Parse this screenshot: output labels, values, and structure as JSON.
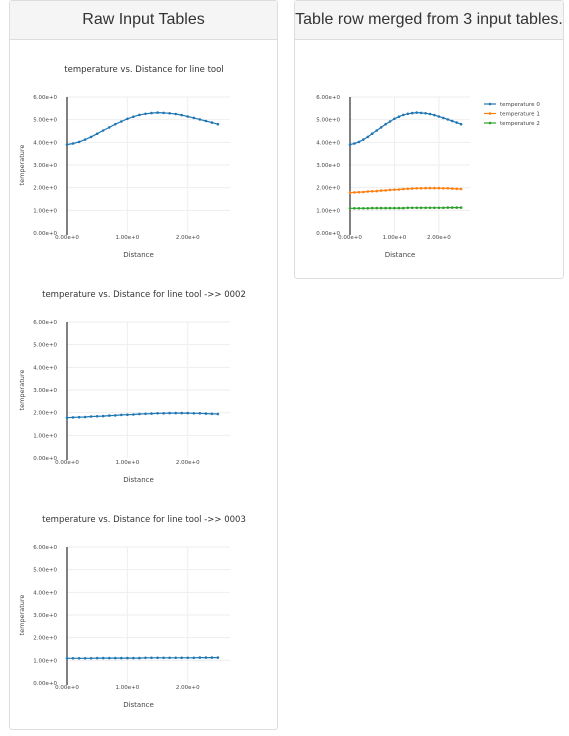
{
  "panels": {
    "left_title": "Raw Input Tables",
    "right_title": "Table row merged from 3 input tables."
  },
  "colors": {
    "series0": "#1f77b4",
    "series1": "#ff7f0e",
    "series2": "#2ca02c",
    "grid": "#eeeeee",
    "axis": "#000000",
    "text": "#444444"
  },
  "chart_data": [
    {
      "type": "line",
      "title": "temperature vs. Distance for line tool",
      "xlabel": "Distance",
      "ylabel": "temperature",
      "xlim": [
        0,
        2.7
      ],
      "ylim": [
        0,
        6
      ],
      "xticks": [
        "0.00e+0",
        "1.00e+0",
        "2.00e+0"
      ],
      "yticks": [
        "0.00e+0",
        "1.00e+0",
        "2.00e+0",
        "3.00e+0",
        "4.00e+0",
        "5.00e+0",
        "6.00e+0"
      ],
      "x": [
        0,
        0.1,
        0.2,
        0.3,
        0.4,
        0.5,
        0.6,
        0.7,
        0.8,
        0.9,
        1.0,
        1.1,
        1.2,
        1.3,
        1.4,
        1.5,
        1.6,
        1.7,
        1.8,
        1.9,
        2.0,
        2.1,
        2.2,
        2.3,
        2.4,
        2.5
      ],
      "series": [
        {
          "values": [
            3.9,
            3.95,
            4.02,
            4.12,
            4.24,
            4.38,
            4.52,
            4.66,
            4.8,
            4.92,
            5.04,
            5.13,
            5.21,
            5.26,
            5.29,
            5.31,
            5.3,
            5.28,
            5.25,
            5.2,
            5.14,
            5.08,
            5.01,
            4.94,
            4.87,
            4.8
          ]
        }
      ],
      "legend": "none",
      "grid": true
    },
    {
      "type": "line",
      "title": "temperature vs. Distance for line tool ->> 0002",
      "xlabel": "Distance",
      "ylabel": "temperature",
      "xlim": [
        0,
        2.7
      ],
      "ylim": [
        0,
        6
      ],
      "xticks": [
        "0.00e+0",
        "1.00e+0",
        "2.00e+0"
      ],
      "yticks": [
        "0.00e+0",
        "1.00e+0",
        "2.00e+0",
        "3.00e+0",
        "4.00e+0",
        "5.00e+0",
        "6.00e+0"
      ],
      "x": [
        0,
        0.1,
        0.2,
        0.3,
        0.4,
        0.5,
        0.6,
        0.7,
        0.8,
        0.9,
        1.0,
        1.1,
        1.2,
        1.3,
        1.4,
        1.5,
        1.6,
        1.7,
        1.8,
        1.9,
        2.0,
        2.1,
        2.2,
        2.3,
        2.4,
        2.5
      ],
      "series": [
        {
          "values": [
            1.78,
            1.79,
            1.8,
            1.81,
            1.83,
            1.84,
            1.85,
            1.87,
            1.88,
            1.9,
            1.91,
            1.92,
            1.94,
            1.95,
            1.96,
            1.97,
            1.97,
            1.98,
            1.98,
            1.98,
            1.98,
            1.97,
            1.97,
            1.96,
            1.95,
            1.94
          ]
        }
      ],
      "legend": "none",
      "grid": true
    },
    {
      "type": "line",
      "title": "temperature vs. Distance for line tool ->> 0003",
      "xlabel": "Distance",
      "ylabel": "temperature",
      "xlim": [
        0,
        2.7
      ],
      "ylim": [
        0,
        6
      ],
      "xticks": [
        "0.00e+0",
        "1.00e+0",
        "2.00e+0"
      ],
      "yticks": [
        "0.00e+0",
        "1.00e+0",
        "2.00e+0",
        "3.00e+0",
        "4.00e+0",
        "5.00e+0",
        "6.00e+0"
      ],
      "x": [
        0,
        0.1,
        0.2,
        0.3,
        0.4,
        0.5,
        0.6,
        0.7,
        0.8,
        0.9,
        1.0,
        1.1,
        1.2,
        1.3,
        1.4,
        1.5,
        1.6,
        1.7,
        1.8,
        1.9,
        2.0,
        2.1,
        2.2,
        2.3,
        2.4,
        2.5
      ],
      "series": [
        {
          "values": [
            1.09,
            1.09,
            1.09,
            1.09,
            1.09,
            1.1,
            1.1,
            1.1,
            1.1,
            1.1,
            1.1,
            1.1,
            1.1,
            1.11,
            1.11,
            1.11,
            1.11,
            1.11,
            1.11,
            1.11,
            1.11,
            1.11,
            1.12,
            1.12,
            1.12,
            1.12
          ]
        }
      ],
      "legend": "none",
      "grid": true
    },
    {
      "type": "line",
      "title": "",
      "xlabel": "Distance",
      "ylabel": "",
      "xlim": [
        0,
        2.7
      ],
      "ylim": [
        0,
        6
      ],
      "xticks": [
        "0.00e+0",
        "1.00e+0",
        "2.00e+0"
      ],
      "yticks": [
        "0.00e+0",
        "1.00e+0",
        "2.00e+0",
        "3.00e+0",
        "4.00e+0",
        "5.00e+0",
        "6.00e+0"
      ],
      "x": [
        0,
        0.1,
        0.2,
        0.3,
        0.4,
        0.5,
        0.6,
        0.7,
        0.8,
        0.9,
        1.0,
        1.1,
        1.2,
        1.3,
        1.4,
        1.5,
        1.6,
        1.7,
        1.8,
        1.9,
        2.0,
        2.1,
        2.2,
        2.3,
        2.4,
        2.5
      ],
      "series": [
        {
          "name": "temperature 0",
          "values": [
            3.9,
            3.95,
            4.02,
            4.12,
            4.24,
            4.38,
            4.52,
            4.66,
            4.8,
            4.92,
            5.04,
            5.13,
            5.21,
            5.26,
            5.29,
            5.31,
            5.3,
            5.28,
            5.25,
            5.2,
            5.14,
            5.08,
            5.01,
            4.94,
            4.87,
            4.8
          ]
        },
        {
          "name": "temperature 1",
          "values": [
            1.78,
            1.79,
            1.8,
            1.81,
            1.83,
            1.84,
            1.85,
            1.87,
            1.88,
            1.9,
            1.91,
            1.92,
            1.94,
            1.95,
            1.96,
            1.97,
            1.97,
            1.98,
            1.98,
            1.98,
            1.98,
            1.97,
            1.97,
            1.96,
            1.95,
            1.94
          ]
        },
        {
          "name": "temperature 2",
          "values": [
            1.09,
            1.09,
            1.09,
            1.09,
            1.09,
            1.1,
            1.1,
            1.1,
            1.1,
            1.1,
            1.1,
            1.1,
            1.1,
            1.11,
            1.11,
            1.11,
            1.11,
            1.11,
            1.11,
            1.11,
            1.11,
            1.11,
            1.12,
            1.12,
            1.12,
            1.12
          ]
        }
      ],
      "legend": "top-right",
      "grid": true
    }
  ]
}
